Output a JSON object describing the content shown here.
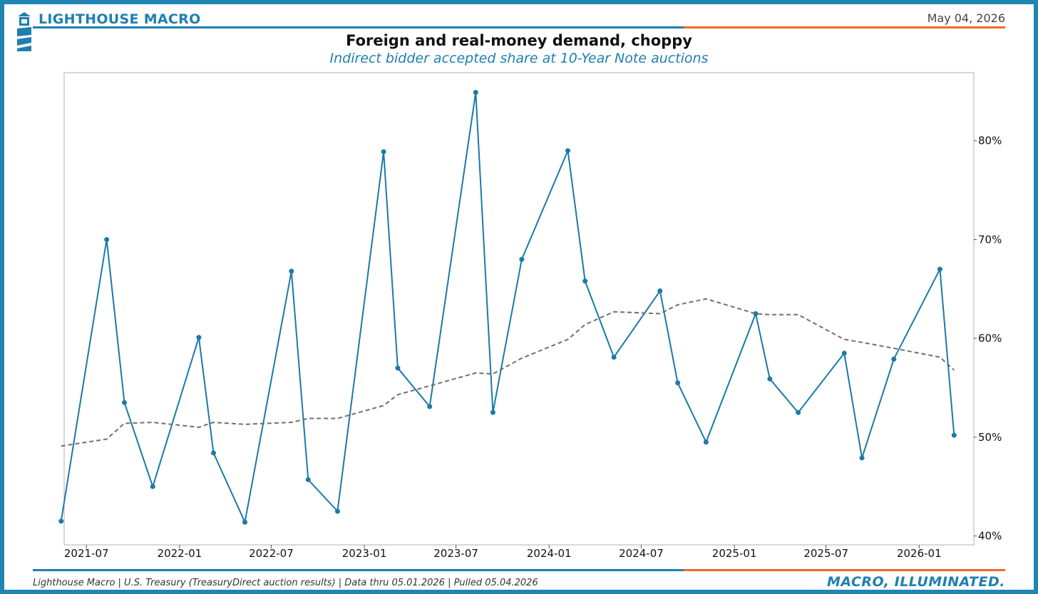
{
  "header": {
    "brand": "LIGHTHOUSE MACRO",
    "date": "May 04, 2026"
  },
  "footer": {
    "source": "Lighthouse Macro | U.S. Treasury (TreasuryDirect auction results) | Data thru 05.01.2026 | Pulled 05.04.2026",
    "tagline": "MACRO, ILLUMINATED."
  },
  "colors": {
    "accent_blue": "#1f7fb0",
    "accent_orange": "#f06a24",
    "series_line": "#1a7aa8",
    "trend_line": "#707070"
  },
  "icons": [
    "lighthouse-logo-icon"
  ],
  "chart_data": {
    "type": "line",
    "title": "Foreign and real-money demand, choppy",
    "subtitle": "Indirect bidder accepted share at 10-Year Note auctions",
    "xlabel": "",
    "ylabel": "",
    "x_ticks": [
      "2021-07",
      "2022-01",
      "2022-07",
      "2023-01",
      "2023-07",
      "2024-01",
      "2024-07",
      "2025-01",
      "2025-07",
      "2026-01"
    ],
    "y_ticks": [
      "40%",
      "50%",
      "60%",
      "70%",
      "80%"
    ],
    "ylim": [
      39.1,
      86.9
    ],
    "xlim": [
      "2021-05-18",
      "2026-04-19"
    ],
    "y_axis_side": "right",
    "grid": false,
    "legend": "none",
    "series": [
      {
        "style": "solid-with-markers",
        "x": [
          "2021-05-12",
          "2021-08-10",
          "2021-09-14",
          "2021-11-09",
          "2022-02-08",
          "2022-03-09",
          "2022-05-10",
          "2022-08-10",
          "2022-09-12",
          "2022-11-09",
          "2023-02-08",
          "2023-03-08",
          "2023-05-10",
          "2023-08-09",
          "2023-09-12",
          "2023-11-08",
          "2024-02-07",
          "2024-03-12",
          "2024-05-08",
          "2024-08-07",
          "2024-09-11",
          "2024-11-06",
          "2025-02-12",
          "2025-03-12",
          "2025-05-07",
          "2025-08-06",
          "2025-09-10",
          "2025-11-12",
          "2026-02-11",
          "2026-03-11"
        ],
        "y": [
          41.5,
          70.0,
          53.5,
          45.0,
          60.1,
          48.4,
          41.4,
          66.8,
          45.7,
          42.5,
          78.9,
          57.0,
          53.1,
          84.9,
          52.5,
          68.0,
          79.0,
          65.8,
          58.1,
          64.8,
          55.5,
          49.5,
          62.5,
          55.9,
          52.5,
          58.5,
          47.9,
          57.9,
          67.0,
          50.2
        ]
      },
      {
        "style": "dashed",
        "x": [
          "2021-05-12",
          "2021-08-10",
          "2021-09-14",
          "2021-11-09",
          "2022-02-08",
          "2022-03-09",
          "2022-05-10",
          "2022-08-10",
          "2022-09-12",
          "2022-11-09",
          "2023-02-08",
          "2023-03-08",
          "2023-05-10",
          "2023-08-09",
          "2023-09-12",
          "2023-11-08",
          "2024-02-07",
          "2024-03-12",
          "2024-05-08",
          "2024-08-07",
          "2024-09-11",
          "2024-11-06",
          "2025-02-12",
          "2025-03-12",
          "2025-05-07",
          "2025-08-06",
          "2025-09-10",
          "2025-11-12",
          "2026-02-11",
          "2026-03-11"
        ],
        "y": [
          49.1,
          49.8,
          51.4,
          51.5,
          51.0,
          51.5,
          51.3,
          51.5,
          51.9,
          51.9,
          53.2,
          54.3,
          55.2,
          56.5,
          56.4,
          58.0,
          59.9,
          61.4,
          62.7,
          62.5,
          63.4,
          64.0,
          62.5,
          62.4,
          62.4,
          59.9,
          59.6,
          59.0,
          58.1,
          56.8
        ]
      }
    ]
  }
}
